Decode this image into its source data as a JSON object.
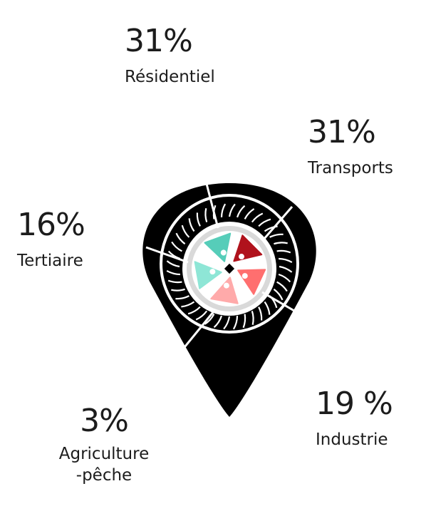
{
  "colors": {
    "pin": "#000000",
    "wheel_white": "#ffffff",
    "hub_grey": "#d9d9d9",
    "blade_teal": "#56cdb9",
    "blade_mint": "#8ee6d6",
    "blade_darkred": "#b0121c",
    "blade_salmon": "#ff6f6f",
    "blade_pink": "#ffaaaa"
  },
  "icon": "map-pin-with-wheel-icon",
  "chart_data": {
    "type": "pie",
    "categories": [
      "Résidentiel",
      "Transports",
      "Industrie",
      "Agriculture -pêche",
      "Tertiaire"
    ],
    "values": [
      31,
      31,
      19,
      3,
      16
    ],
    "value_labels": [
      "31%",
      "31%",
      "19 %",
      "3%",
      "16%"
    ],
    "title": "",
    "legend": "none"
  },
  "labels": {
    "residentiel": {
      "value": "31%",
      "name": "Résidentiel"
    },
    "transports": {
      "value": "31%",
      "name": "Transports"
    },
    "tertiaire": {
      "value": "16%",
      "name": "Tertiaire"
    },
    "industrie": {
      "value": "19 %",
      "name": "Industrie"
    },
    "agriculture": {
      "value": "3%",
      "name_line1": "Agriculture",
      "name_line2": "-pêche"
    }
  }
}
